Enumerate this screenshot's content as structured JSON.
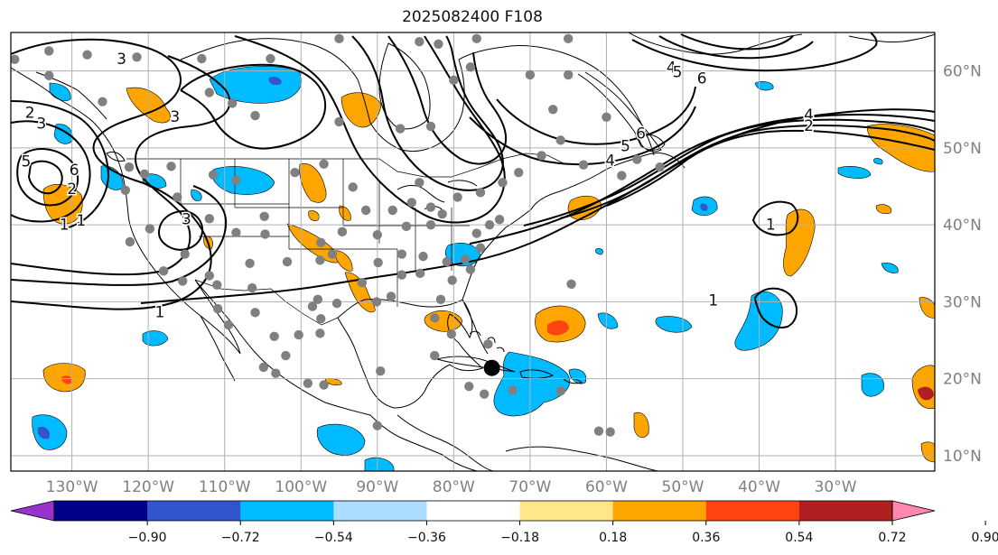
{
  "title": "2025082400 F108",
  "map": {
    "projection": "PlateCarree",
    "extent_lon": [
      -138,
      -17
    ],
    "extent_lat": [
      8,
      65
    ],
    "gridlines": true,
    "lon_ticks": [
      {
        "value": -130,
        "label": "130°W"
      },
      {
        "value": -120,
        "label": "120°W"
      },
      {
        "value": -110,
        "label": "110°W"
      },
      {
        "value": -100,
        "label": "100°W"
      },
      {
        "value": -90,
        "label": "90°W"
      },
      {
        "value": -80,
        "label": "80°W"
      },
      {
        "value": -70,
        "label": "70°W"
      },
      {
        "value": -60,
        "label": "60°W"
      },
      {
        "value": -50,
        "label": "50°W"
      },
      {
        "value": -40,
        "label": "40°W"
      },
      {
        "value": -30,
        "label": "30°W"
      }
    ],
    "lat_ticks": [
      {
        "value": 60,
        "label": "60°N"
      },
      {
        "value": 50,
        "label": "50°N"
      },
      {
        "value": 40,
        "label": "40°N"
      },
      {
        "value": 30,
        "label": "30°N"
      },
      {
        "value": 20,
        "label": "20°N"
      },
      {
        "value": 10,
        "label": "10°N"
      }
    ],
    "marker": {
      "lon": -75,
      "lat": 21.4,
      "color": "#000000"
    },
    "station_color": "#808080",
    "stations": [
      [
        -137.5,
        61.5
      ],
      [
        -133,
        62.6
      ],
      [
        -128,
        62.1
      ],
      [
        -121.5,
        61.8
      ],
      [
        -113,
        61.6
      ],
      [
        -104,
        61.6
      ],
      [
        -133,
        59.4
      ],
      [
        -126,
        56
      ],
      [
        -112,
        57.2
      ],
      [
        -109,
        55.8
      ],
      [
        -106,
        54.2
      ],
      [
        -95,
        53.4
      ],
      [
        -87,
        52.5
      ],
      [
        -83,
        52.8
      ],
      [
        -77.8,
        60.5
      ],
      [
        -80,
        58.8
      ],
      [
        -70,
        59.5
      ],
      [
        -77,
        64.2
      ],
      [
        -82,
        63.5
      ],
      [
        -84.5,
        63.8
      ],
      [
        -95,
        64.2
      ],
      [
        -65,
        64.2
      ],
      [
        -65,
        59.5
      ],
      [
        -67,
        55
      ],
      [
        -60,
        54
      ],
      [
        -56,
        48.5
      ],
      [
        -58,
        46.4
      ],
      [
        -53,
        47.5
      ],
      [
        -63,
        47.8
      ],
      [
        -68.5,
        49
      ],
      [
        -66,
        51
      ],
      [
        -71.5,
        46.8
      ],
      [
        -73.6,
        45.5
      ],
      [
        -76.5,
        44.2
      ],
      [
        -79.5,
        43.6
      ],
      [
        -74,
        40.7
      ],
      [
        -75.3,
        40
      ],
      [
        -77,
        38.9
      ],
      [
        -76.5,
        37
      ],
      [
        -78.5,
        35.5
      ],
      [
        -80.9,
        35.2
      ],
      [
        -84.4,
        33.7
      ],
      [
        -86.8,
        33.5
      ],
      [
        -88.2,
        30.7
      ],
      [
        -90.1,
        30
      ],
      [
        -92,
        32.5
      ],
      [
        -95.3,
        29.8
      ],
      [
        -97.8,
        30.3
      ],
      [
        -98.5,
        29.4
      ],
      [
        -97.4,
        27.8
      ],
      [
        -97.5,
        25.9
      ],
      [
        -100.3,
        25.7
      ],
      [
        -106.4,
        31.8
      ],
      [
        -111,
        32.2
      ],
      [
        -112,
        33.4
      ],
      [
        -115.5,
        32.7
      ],
      [
        -118,
        34
      ],
      [
        -122.4,
        37.8
      ],
      [
        -123,
        44.5
      ],
      [
        -122.5,
        47.5
      ],
      [
        -117,
        47.6
      ],
      [
        -111.5,
        46.5
      ],
      [
        -108.5,
        45.8
      ],
      [
        -104.8,
        41.1
      ],
      [
        -100.8,
        46.8
      ],
      [
        -97,
        47.9
      ],
      [
        -93.2,
        44.9
      ],
      [
        -91.5,
        41.9
      ],
      [
        -88,
        41.9
      ],
      [
        -86.2,
        39.8
      ],
      [
        -83,
        40
      ],
      [
        -81.5,
        41.4
      ],
      [
        -85.5,
        42.9
      ],
      [
        -83,
        42.3
      ],
      [
        -84.5,
        45.5
      ],
      [
        -90,
        38.7
      ],
      [
        -94.6,
        39.1
      ],
      [
        -97.4,
        37.7
      ],
      [
        -95.9,
        36.2
      ],
      [
        -97.5,
        35.4
      ],
      [
        -101.8,
        35.2
      ],
      [
        -104.7,
        38.8
      ],
      [
        -108.5,
        39
      ],
      [
        -106.7,
        35
      ],
      [
        -112,
        40.8
      ],
      [
        -115.2,
        36.2
      ],
      [
        -116.2,
        43.6
      ],
      [
        -119.8,
        39.5
      ],
      [
        -120.5,
        46.6
      ],
      [
        -89.9,
        35.1
      ],
      [
        -86.8,
        36.2
      ],
      [
        -84,
        35.9
      ],
      [
        -82.5,
        27.9
      ],
      [
        -80.3,
        25.8
      ],
      [
        -81.7,
        30.3
      ],
      [
        -80.2,
        32.8
      ],
      [
        -77.8,
        34.2
      ],
      [
        -90,
        13.9
      ],
      [
        -99.1,
        19.4
      ],
      [
        -102,
        23
      ],
      [
        -104.9,
        21.5
      ],
      [
        -103.3,
        20.7
      ],
      [
        -97,
        19.2
      ],
      [
        -106,
        28.6
      ],
      [
        -109.5,
        27
      ],
      [
        -110.9,
        29.1
      ],
      [
        -103.5,
        25.5
      ],
      [
        -89.6,
        21
      ],
      [
        -82.5,
        23
      ],
      [
        -78,
        19
      ],
      [
        -76,
        18
      ],
      [
        -72.3,
        18.5
      ],
      [
        -66,
        18.4
      ],
      [
        -61,
        13.2
      ],
      [
        -59.5,
        13.1
      ],
      [
        -64.6,
        32.3
      ],
      [
        -75.5,
        24.5
      ]
    ]
  },
  "contours": {
    "line_color": "#000000",
    "labels": [
      {
        "text": "3",
        "lon": -123.5,
        "lat": 61.6
      },
      {
        "text": "2",
        "lon": -135.5,
        "lat": 54.6
      },
      {
        "text": "3",
        "lon": -134,
        "lat": 53.2
      },
      {
        "text": "5",
        "lon": -136,
        "lat": 48.3
      },
      {
        "text": "6",
        "lon": -129.7,
        "lat": 47.2
      },
      {
        "text": "2",
        "lon": -130,
        "lat": 44.7
      },
      {
        "text": "1",
        "lon": -131,
        "lat": 40.1
      },
      {
        "text": "1",
        "lon": -128.8,
        "lat": 40.6
      },
      {
        "text": "3",
        "lon": -116.5,
        "lat": 54.1
      },
      {
        "text": "3",
        "lon": -115,
        "lat": 40.8
      },
      {
        "text": "1",
        "lon": -118.5,
        "lat": 28.7
      },
      {
        "text": "4",
        "lon": -51.5,
        "lat": 60.5
      },
      {
        "text": "5",
        "lon": -50.7,
        "lat": 59.9
      },
      {
        "text": "6",
        "lon": -47.5,
        "lat": 59.1
      },
      {
        "text": "6",
        "lon": -55.5,
        "lat": 51.9
      },
      {
        "text": "5",
        "lon": -57.5,
        "lat": 50.3
      },
      {
        "text": "4",
        "lon": -59.5,
        "lat": 48.4
      },
      {
        "text": "4",
        "lon": -33.5,
        "lat": 54.3
      },
      {
        "text": "2",
        "lon": -33.5,
        "lat": 52.9
      },
      {
        "text": "1",
        "lon": -38.5,
        "lat": 40.1
      },
      {
        "text": "1",
        "lon": -46,
        "lat": 30.2
      }
    ]
  },
  "colorbar": {
    "ticks": [
      "−0.90",
      "−0.72",
      "−0.54",
      "−0.36",
      "−0.18",
      "0.18",
      "0.36",
      "0.54",
      "0.72",
      "0.90"
    ],
    "under_color": "#9933cc",
    "over_color": "#ff88b0",
    "colors": [
      "#9933cc",
      "#000088",
      "#3355cc",
      "#00bbff",
      "#aaddff",
      "#ffffff",
      "#ffe688",
      "#ffa500",
      "#ff4411",
      "#b02020",
      "#ff88b0"
    ]
  },
  "shading_colors": {
    "orange": "#ffa500",
    "red_orange": "#ff4411",
    "dark_red": "#b02020",
    "blue": "#00bbff",
    "mid_blue": "#3355cc"
  }
}
